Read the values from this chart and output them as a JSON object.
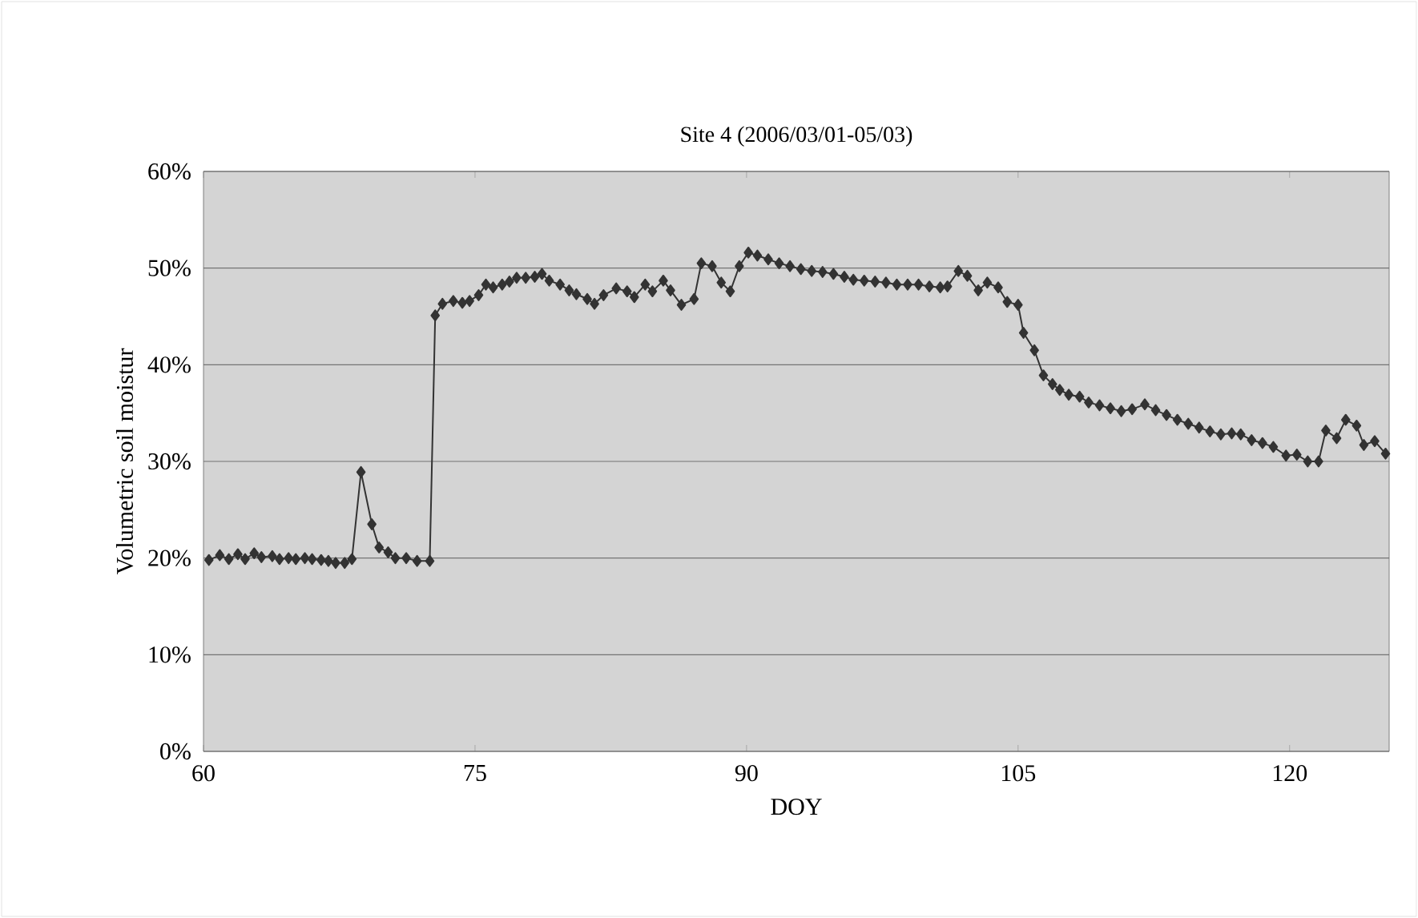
{
  "chart_data": {
    "type": "line",
    "title": "Site 4 (2006/03/01-05/03)",
    "xlabel": "DOY",
    "ylabel": "Volumetric soil moistur",
    "xlim": [
      60,
      125.5
    ],
    "xticks": [
      60,
      75,
      90,
      105,
      120
    ],
    "ylim": [
      0,
      60
    ],
    "yticks": [
      {
        "value": 0,
        "label": "0%"
      },
      {
        "value": 10,
        "label": "10%"
      },
      {
        "value": 20,
        "label": "20%"
      },
      {
        "value": 30,
        "label": "30%"
      },
      {
        "value": 40,
        "label": "40%"
      },
      {
        "value": 50,
        "label": "50%"
      },
      {
        "value": 60,
        "label": "60%"
      }
    ],
    "grid": "y",
    "marker": "diamond",
    "line_style": "solid",
    "series": [
      {
        "color": "#333333",
        "x": [
          60.3,
          60.9,
          61.4,
          61.9,
          62.3,
          62.8,
          63.2,
          63.8,
          64.2,
          64.7,
          65.1,
          65.6,
          66.0,
          66.5,
          66.9,
          67.3,
          67.8,
          68.2,
          68.7,
          69.3,
          69.7,
          70.2,
          70.6,
          71.2,
          71.8,
          72.5,
          72.8,
          73.2,
          73.8,
          74.3,
          74.7,
          75.2,
          75.6,
          76.0,
          76.5,
          76.9,
          77.3,
          77.8,
          78.3,
          78.7,
          79.1,
          79.7,
          80.2,
          80.6,
          81.2,
          81.6,
          82.1,
          82.8,
          83.4,
          83.8,
          84.4,
          84.8,
          85.4,
          85.8,
          86.4,
          87.1,
          87.5,
          88.1,
          88.6,
          89.1,
          89.6,
          90.1,
          90.6,
          91.2,
          91.8,
          92.4,
          93.0,
          93.6,
          94.2,
          94.8,
          95.4,
          95.9,
          96.5,
          97.1,
          97.7,
          98.3,
          98.9,
          99.5,
          100.1,
          100.7,
          101.1,
          101.7,
          102.2,
          102.8,
          103.3,
          103.9,
          104.4,
          105.0,
          105.3,
          105.9,
          106.4,
          106.9,
          107.3,
          107.8,
          108.4,
          108.9,
          109.5,
          110.1,
          110.7,
          111.3,
          112.0,
          112.6,
          113.2,
          113.8,
          114.4,
          115.0,
          115.6,
          116.2,
          116.8,
          117.3,
          117.9,
          118.5,
          119.1,
          119.8,
          120.4,
          121.0,
          121.6,
          122.0,
          122.6,
          123.1,
          123.7,
          124.1,
          124.7,
          125.3
        ],
        "values": [
          19.8,
          20.3,
          19.9,
          20.4,
          19.9,
          20.5,
          20.1,
          20.2,
          19.9,
          20.0,
          19.9,
          20.0,
          19.9,
          19.8,
          19.7,
          19.5,
          19.5,
          19.9,
          28.9,
          23.5,
          21.1,
          20.6,
          20.0,
          20.0,
          19.7,
          19.7,
          45.1,
          46.3,
          46.6,
          46.4,
          46.6,
          47.2,
          48.3,
          48.0,
          48.3,
          48.6,
          49.0,
          49.0,
          49.1,
          49.4,
          48.7,
          48.3,
          47.7,
          47.3,
          46.8,
          46.3,
          47.2,
          47.9,
          47.6,
          47.0,
          48.3,
          47.6,
          48.7,
          47.7,
          46.2,
          46.8,
          50.5,
          50.2,
          48.5,
          47.6,
          50.2,
          51.6,
          51.3,
          50.9,
          50.5,
          50.2,
          49.9,
          49.7,
          49.6,
          49.4,
          49.1,
          48.8,
          48.7,
          48.6,
          48.5,
          48.3,
          48.3,
          48.3,
          48.1,
          48.0,
          48.1,
          49.7,
          49.2,
          47.7,
          48.5,
          48.0,
          46.5,
          46.2,
          43.3,
          41.5,
          38.9,
          38.0,
          37.4,
          36.9,
          36.7,
          36.1,
          35.8,
          35.5,
          35.2,
          35.4,
          35.9,
          35.3,
          34.8,
          34.3,
          33.9,
          33.5,
          33.1,
          32.8,
          32.9,
          32.8,
          32.2,
          31.9,
          31.5,
          30.6,
          30.7,
          30.0,
          30.0,
          33.2,
          32.4,
          34.3,
          33.7,
          31.7,
          32.1,
          30.8
        ]
      }
    ]
  }
}
